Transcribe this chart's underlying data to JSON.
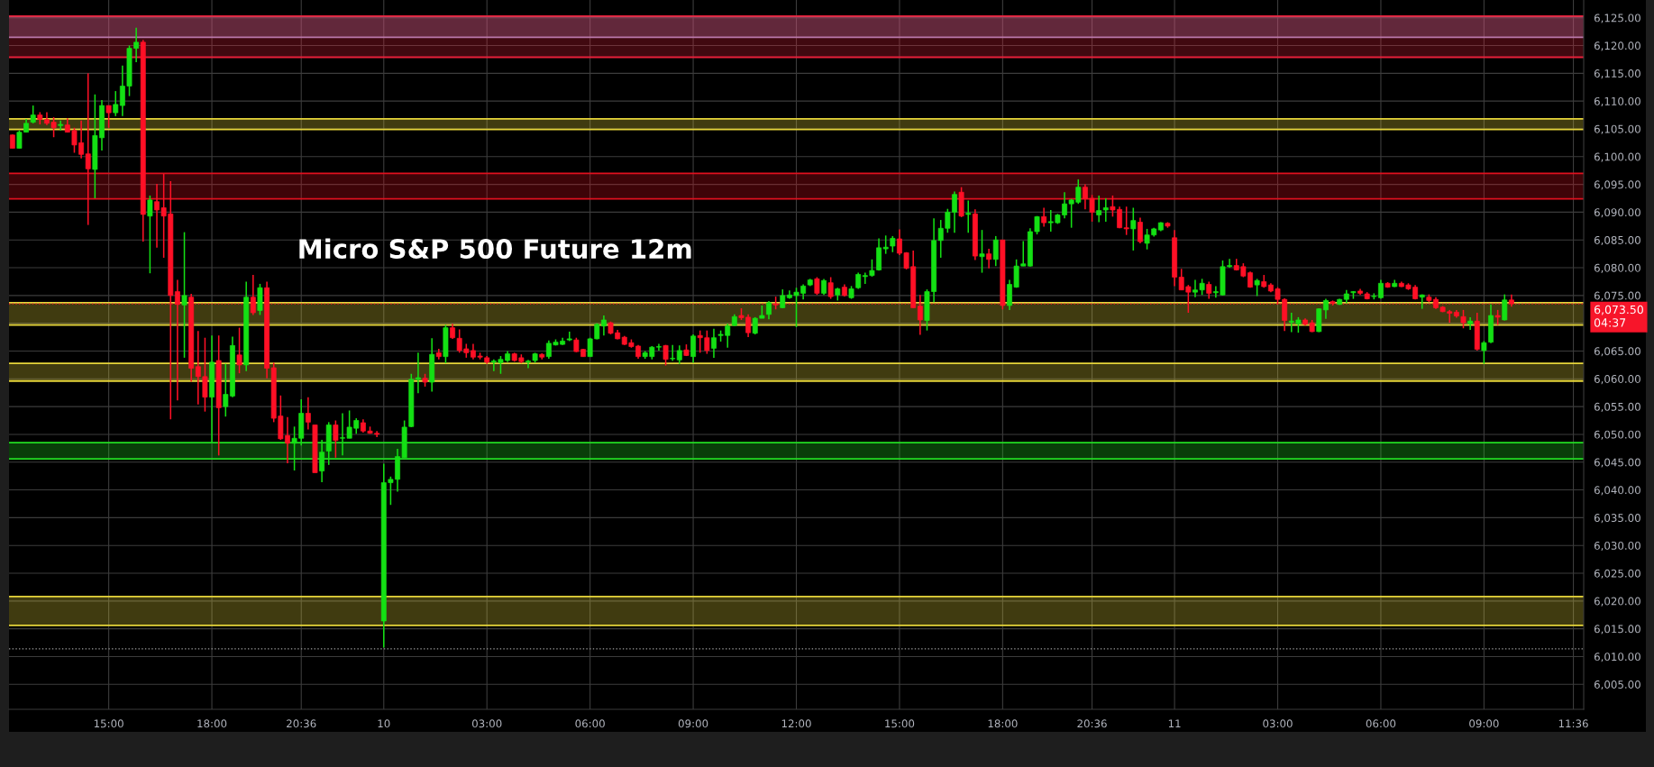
{
  "chart_data": {
    "type": "candlestick",
    "title": "Micro S&P 500 Future 12m",
    "categories": [
      null,
      null,
      null,
      null,
      null,
      null,
      null,
      null,
      null,
      null,
      null,
      null,
      null,
      null,
      "15:00",
      null,
      null,
      null,
      null,
      null,
      null,
      null,
      null,
      null,
      null,
      null,
      null,
      null,
      null,
      "18:00",
      null,
      null,
      null,
      null,
      null,
      null,
      null,
      null,
      null,
      null,
      null,
      null,
      "20:36",
      null,
      null,
      null,
      null,
      null,
      null,
      null,
      null,
      null,
      null,
      null,
      "10",
      null,
      null,
      null,
      null,
      null,
      null,
      null,
      null,
      null,
      null,
      null,
      null,
      null,
      null,
      "03:00",
      null,
      null,
      null,
      null,
      null,
      null,
      null,
      null,
      null,
      null,
      null,
      null,
      null,
      null,
      "06:00",
      null,
      null,
      null,
      null,
      null,
      null,
      null,
      null,
      null,
      null,
      null,
      null,
      null,
      null,
      "09:00",
      null,
      null,
      null,
      null,
      null,
      null,
      null,
      null,
      null,
      null,
      null,
      null,
      null,
      null,
      "12:00",
      null,
      null,
      null,
      null,
      null,
      null,
      null,
      null,
      null,
      null,
      null,
      null,
      null,
      null,
      "15:00",
      null,
      null,
      null,
      null,
      null,
      null,
      null,
      null,
      null,
      null,
      null,
      null,
      null,
      null,
      "18:00",
      null,
      null,
      null,
      null,
      null,
      null,
      null,
      null,
      null,
      null,
      null,
      null,
      "20:36",
      null,
      null,
      null,
      null,
      null,
      null,
      null,
      null,
      null,
      null,
      null,
      "11",
      null,
      null,
      null,
      null,
      null,
      null,
      null,
      null,
      null,
      null,
      null,
      null,
      null,
      null,
      "03:00",
      null,
      null,
      null,
      null,
      null,
      null,
      null,
      null,
      null,
      null,
      null,
      null,
      null,
      null,
      "06:00",
      null,
      null,
      null,
      null,
      null,
      null,
      null,
      null,
      null,
      null,
      null,
      null,
      null,
      null,
      "09:00",
      null,
      null,
      null,
      null,
      null,
      null,
      null,
      null,
      null,
      null,
      null,
      null,
      "11:36",
      null
    ],
    "ohlc": [
      [
        6103.9,
        6104.0,
        6101.5,
        6101.5
      ],
      [
        6101.5,
        6104.7,
        6101.5,
        6104.4
      ],
      [
        6104.4,
        6106.8,
        6104.4,
        6106.0
      ],
      [
        6106.2,
        6109.2,
        6106.0,
        6107.5
      ],
      [
        6107.5,
        6108.0,
        6105.8,
        6106.7
      ],
      [
        6106.7,
        6108.0,
        6105.7,
        6106.0
      ],
      [
        6106.2,
        6107.1,
        6103.5,
        6105.2
      ],
      [
        6105.6,
        6106.5,
        6104.7,
        6105.8
      ],
      [
        6105.7,
        6106.9,
        6104.4,
        6104.4
      ],
      [
        6104.7,
        6105.2,
        6100.7,
        6102.1
      ],
      [
        6102.5,
        6106.5,
        6099.7,
        6100.4
      ],
      [
        6100.5,
        6115.0,
        6087.7,
        6097.8
      ],
      [
        6097.7,
        6111.2,
        6092.5,
        6103.8
      ],
      [
        6103.4,
        6110.2,
        6101.1,
        6109.2
      ],
      [
        6109.2,
        6109.2,
        6105.2,
        6107.9
      ],
      [
        6107.9,
        6111.8,
        6107.3,
        6109.4
      ],
      [
        6109.2,
        6116.4,
        6107.3,
        6112.7
      ],
      [
        6112.7,
        6120.0,
        6110.9,
        6119.5
      ],
      [
        6119.5,
        6123.2,
        6117.0,
        6120.6
      ],
      [
        6120.6,
        6121.0,
        6084.7,
        6089.6
      ],
      [
        6089.3,
        6093.0,
        6079.0,
        6092.2
      ],
      [
        6091.9,
        6095.1,
        6083.6,
        6090.4
      ],
      [
        6090.8,
        6096.9,
        6081.8,
        6089.3
      ],
      [
        6089.7,
        6095.6,
        6052.7,
        6075.0
      ],
      [
        6075.7,
        6077.8,
        6056.1,
        6073.4
      ],
      [
        6073.3,
        6086.4,
        6063.8,
        6075.0
      ],
      [
        6074.7,
        6075.3,
        6059.5,
        6061.9
      ],
      [
        6062.2,
        6068.6,
        6055.4,
        6060.4
      ],
      [
        6060.4,
        6067.4,
        6054.1,
        6056.7
      ],
      [
        6056.7,
        6067.8,
        6048.4,
        6063.0
      ],
      [
        6063.3,
        6067.8,
        6046.2,
        6054.8
      ],
      [
        6055.0,
        6062.7,
        6053.2,
        6057.2
      ],
      [
        6056.9,
        6067.6,
        6056.7,
        6066.0
      ],
      [
        6064.3,
        6069.2,
        6061.0,
        6062.5
      ],
      [
        6062.5,
        6077.5,
        6061.4,
        6074.7
      ],
      [
        6074.7,
        6078.7,
        6071.5,
        6071.9
      ],
      [
        6072.3,
        6077.1,
        6071.5,
        6076.4
      ],
      [
        6076.4,
        6077.5,
        6060.1,
        6061.9
      ],
      [
        6062.0,
        6062.9,
        6052.2,
        6052.9
      ],
      [
        6053.3,
        6057.0,
        6049.0,
        6049.2
      ],
      [
        6049.8,
        6053.1,
        6044.8,
        6048.4
      ],
      [
        6048.4,
        6051.4,
        6043.5,
        6049.3
      ],
      [
        6049.3,
        6056.3,
        6048.0,
        6053.8
      ],
      [
        6053.8,
        6056.7,
        6050.9,
        6052.2
      ],
      [
        6051.7,
        6051.7,
        6043.1,
        6043.1
      ],
      [
        6043.4,
        6049.0,
        6041.4,
        6046.8
      ],
      [
        6047.0,
        6052.2,
        6044.5,
        6051.7
      ],
      [
        6051.7,
        6052.5,
        6045.8,
        6048.9
      ],
      [
        6049.3,
        6053.8,
        6046.2,
        6049.4
      ],
      [
        6049.3,
        6054.3,
        6049.3,
        6051.3
      ],
      [
        6051.1,
        6052.9,
        6050.1,
        6052.5
      ],
      [
        6052.1,
        6052.7,
        6050.3,
        6050.6
      ],
      [
        6050.6,
        6051.4,
        6050.1,
        6050.2
      ],
      [
        6050.2,
        6050.6,
        6049.5,
        6050.0
      ],
      [
        6016.4,
        6044.7,
        6011.6,
        6041.3
      ],
      [
        6041.3,
        6042.4,
        6037.3,
        6041.9
      ],
      [
        6041.9,
        6047.4,
        6039.7,
        6046.0
      ],
      [
        6045.8,
        6052.5,
        6045.8,
        6051.3
      ],
      [
        6051.4,
        6060.9,
        6051.3,
        6059.9
      ],
      [
        6059.9,
        6064.7,
        6057.4,
        6060.2
      ],
      [
        6060.1,
        6060.9,
        6058.6,
        6059.4
      ],
      [
        6059.4,
        6067.3,
        6057.7,
        6064.4
      ],
      [
        6064.7,
        6065.4,
        6063.5,
        6064.0
      ],
      [
        6064.0,
        6069.7,
        6062.8,
        6069.2
      ],
      [
        6069.2,
        6069.9,
        6067.2,
        6067.4
      ],
      [
        6067.3,
        6068.9,
        6064.7,
        6065.1
      ],
      [
        6065.4,
        6066.3,
        6063.8,
        6064.7
      ],
      [
        6065.1,
        6066.3,
        6063.5,
        6063.9
      ],
      [
        6064.1,
        6064.7,
        6063.5,
        6063.9
      ],
      [
        6063.8,
        6064.1,
        6062.7,
        6063.0
      ],
      [
        6063.0,
        6063.5,
        6061.4,
        6063.2
      ],
      [
        6062.9,
        6064.1,
        6060.9,
        6063.5
      ],
      [
        6063.3,
        6065.0,
        6063.0,
        6064.5
      ],
      [
        6064.5,
        6064.7,
        6063.1,
        6063.3
      ],
      [
        6063.8,
        6064.4,
        6062.8,
        6063.1
      ],
      [
        6063.0,
        6063.4,
        6061.9,
        6063.2
      ],
      [
        6063.3,
        6064.7,
        6062.9,
        6064.5
      ],
      [
        6064.4,
        6064.6,
        6063.5,
        6063.9
      ],
      [
        6064.0,
        6066.9,
        6063.6,
        6066.4
      ],
      [
        6066.1,
        6067.1,
        6066.0,
        6066.6
      ],
      [
        6066.2,
        6067.4,
        6066.1,
        6066.8
      ],
      [
        6067.0,
        6068.5,
        6066.8,
        6067.2
      ],
      [
        6067.0,
        6067.4,
        6064.8,
        6064.9
      ],
      [
        6065.3,
        6065.4,
        6064.0,
        6064.0
      ],
      [
        6064.0,
        6067.4,
        6064.0,
        6067.2
      ],
      [
        6067.2,
        6070.0,
        6067.1,
        6069.8
      ],
      [
        6069.5,
        6071.4,
        6067.8,
        6070.6
      ],
      [
        6070.1,
        6070.3,
        6068.0,
        6068.2
      ],
      [
        6068.3,
        6068.8,
        6067.1,
        6067.2
      ],
      [
        6067.5,
        6067.7,
        6066.1,
        6066.2
      ],
      [
        6066.5,
        6067.1,
        6065.6,
        6065.8
      ],
      [
        6065.9,
        6066.1,
        6063.6,
        6064.0
      ],
      [
        6064.0,
        6065.0,
        6063.6,
        6064.7
      ],
      [
        6064.0,
        6065.9,
        6063.5,
        6065.7
      ],
      [
        6065.7,
        6066.3,
        6065.1,
        6065.8
      ],
      [
        6066.0,
        6066.1,
        6062.4,
        6063.5
      ],
      [
        6063.6,
        6066.1,
        6063.2,
        6063.7
      ],
      [
        6063.4,
        6066.0,
        6062.7,
        6065.1
      ],
      [
        6065.2,
        6066.2,
        6064.1,
        6064.2
      ],
      [
        6064.0,
        6068.0,
        6062.9,
        6067.7
      ],
      [
        6067.8,
        6068.7,
        6064.7,
        6067.4
      ],
      [
        6067.4,
        6068.7,
        6064.5,
        6065.1
      ],
      [
        6065.5,
        6069.0,
        6063.8,
        6067.4
      ],
      [
        6067.8,
        6068.7,
        6066.7,
        6068.0
      ],
      [
        6067.8,
        6069.9,
        6065.6,
        6069.5
      ],
      [
        6069.6,
        6071.6,
        6069.5,
        6071.2
      ],
      [
        6071.4,
        6072.7,
        6070.6,
        6071.0
      ],
      [
        6071.1,
        6071.6,
        6067.5,
        6068.3
      ],
      [
        6068.2,
        6071.1,
        6068.0,
        6070.9
      ],
      [
        6070.9,
        6073.2,
        6070.9,
        6071.4
      ],
      [
        6071.6,
        6074.0,
        6070.7,
        6073.7
      ],
      [
        6073.5,
        6074.8,
        6072.5,
        6073.3
      ],
      [
        6072.8,
        6076.1,
        6072.7,
        6075.0
      ],
      [
        6074.6,
        6075.9,
        6074.4,
        6075.1
      ],
      [
        6075.0,
        6076.4,
        6069.3,
        6075.6
      ],
      [
        6075.4,
        6077.0,
        6074.3,
        6076.7
      ],
      [
        6076.9,
        6078.0,
        6076.7,
        6077.8
      ],
      [
        6078.0,
        6078.3,
        6075.1,
        6075.4
      ],
      [
        6075.4,
        6078.0,
        6075.1,
        6077.7
      ],
      [
        6077.3,
        6078.3,
        6074.4,
        6074.8
      ],
      [
        6075.1,
        6076.4,
        6074.1,
        6076.2
      ],
      [
        6076.5,
        6077.0,
        6074.8,
        6075.0
      ],
      [
        6074.6,
        6076.7,
        6074.4,
        6076.2
      ],
      [
        6076.4,
        6079.1,
        6076.2,
        6078.8
      ],
      [
        6078.4,
        6079.1,
        6077.1,
        6078.6
      ],
      [
        6078.6,
        6081.5,
        6078.4,
        6079.5
      ],
      [
        6079.6,
        6085.3,
        6079.5,
        6083.6
      ],
      [
        6083.4,
        6085.8,
        6082.5,
        6083.7
      ],
      [
        6083.9,
        6085.7,
        6082.8,
        6085.3
      ],
      [
        6085.2,
        6086.9,
        6082.3,
        6082.6
      ],
      [
        6082.7,
        6082.8,
        6079.7,
        6079.9
      ],
      [
        6080.2,
        6083.1,
        6072.8,
        6072.8
      ],
      [
        6073.1,
        6075.1,
        6067.9,
        6070.6
      ],
      [
        6070.5,
        6076.1,
        6068.7,
        6075.7
      ],
      [
        6075.7,
        6088.9,
        6073.8,
        6084.9
      ],
      [
        6084.9,
        6088.6,
        6081.8,
        6087.1
      ],
      [
        6087.1,
        6090.6,
        6086.3,
        6090.0
      ],
      [
        6090.0,
        6093.7,
        6086.3,
        6093.2
      ],
      [
        6093.6,
        6094.5,
        6089.1,
        6089.3
      ],
      [
        6089.6,
        6092.1,
        6086.3,
        6089.8
      ],
      [
        6089.7,
        6090.5,
        6081.4,
        6082.1
      ],
      [
        6082.0,
        6086.8,
        6079.1,
        6082.5
      ],
      [
        6082.5,
        6083.4,
        6079.9,
        6081.5
      ],
      [
        6081.5,
        6085.7,
        6080.3,
        6085.0
      ],
      [
        6085.0,
        6085.0,
        6072.5,
        6073.2
      ],
      [
        6073.2,
        6077.8,
        6072.4,
        6077.0
      ],
      [
        6076.5,
        6081.5,
        6076.4,
        6080.3
      ],
      [
        6080.3,
        6084.8,
        6080.3,
        6080.7
      ],
      [
        6080.3,
        6087.1,
        6080.2,
        6086.5
      ],
      [
        6086.5,
        6089.3,
        6086.0,
        6089.2
      ],
      [
        6089.2,
        6090.8,
        6087.4,
        6088.1
      ],
      [
        6088.1,
        6090.4,
        6086.5,
        6088.3
      ],
      [
        6088.1,
        6089.7,
        6087.9,
        6089.5
      ],
      [
        6089.5,
        6093.6,
        6088.9,
        6091.5
      ],
      [
        6091.5,
        6092.4,
        6087.2,
        6092.2
      ],
      [
        6091.8,
        6095.9,
        6091.5,
        6094.5
      ],
      [
        6094.5,
        6095.0,
        6090.5,
        6092.4
      ],
      [
        6092.5,
        6093.1,
        6088.3,
        6090.0
      ],
      [
        6089.5,
        6093.0,
        6088.2,
        6090.3
      ],
      [
        6090.4,
        6092.5,
        6088.3,
        6090.8
      ],
      [
        6091.0,
        6093.0,
        6089.2,
        6090.4
      ],
      [
        6090.5,
        6091.0,
        6087.1,
        6087.2
      ],
      [
        6087.2,
        6091.0,
        6085.9,
        6087.0
      ],
      [
        6087.0,
        6090.8,
        6083.1,
        6088.5
      ],
      [
        6088.2,
        6089.0,
        6084.4,
        6084.7
      ],
      [
        6084.4,
        6087.0,
        6083.3,
        6085.9
      ],
      [
        6085.9,
        6087.2,
        6085.6,
        6087.0
      ],
      [
        6086.8,
        6088.2,
        6086.6,
        6088.1
      ],
      [
        6088.0,
        6088.2,
        6087.2,
        6087.5
      ],
      [
        6085.4,
        6086.8,
        6076.7,
        6078.3
      ],
      [
        6078.3,
        6079.8,
        6076.0,
        6076.0
      ],
      [
        6076.6,
        6076.9,
        6071.9,
        6075.6
      ],
      [
        6075.6,
        6077.8,
        6074.7,
        6076.0
      ],
      [
        6076.0,
        6078.0,
        6075.1,
        6077.2
      ],
      [
        6077.0,
        6077.5,
        6074.4,
        6075.4
      ],
      [
        6075.5,
        6076.7,
        6074.6,
        6075.7
      ],
      [
        6075.1,
        6081.3,
        6075.0,
        6080.2
      ],
      [
        6080.2,
        6081.6,
        6080.0,
        6080.4
      ],
      [
        6080.4,
        6081.6,
        6079.5,
        6079.6
      ],
      [
        6080.2,
        6080.8,
        6078.3,
        6078.5
      ],
      [
        6079.1,
        6079.3,
        6076.4,
        6076.5
      ],
      [
        6076.9,
        6078.0,
        6074.9,
        6077.7
      ],
      [
        6077.5,
        6078.7,
        6076.4,
        6076.6
      ],
      [
        6076.9,
        6077.2,
        6075.6,
        6075.8
      ],
      [
        6076.2,
        6076.5,
        6073.4,
        6074.3
      ],
      [
        6074.3,
        6074.5,
        6068.6,
        6070.5
      ],
      [
        6070.2,
        6071.9,
        6068.4,
        6070.4
      ],
      [
        6069.9,
        6071.1,
        6068.3,
        6070.6
      ],
      [
        6070.6,
        6070.9,
        6069.6,
        6069.8
      ],
      [
        6070.1,
        6070.6,
        6068.4,
        6068.5
      ],
      [
        6068.5,
        6072.7,
        6068.4,
        6072.6
      ],
      [
        6072.4,
        6074.4,
        6070.8,
        6074.1
      ],
      [
        6073.9,
        6074.1,
        6073.2,
        6073.6
      ],
      [
        6073.4,
        6074.4,
        6073.3,
        6074.3
      ],
      [
        6074.3,
        6076.0,
        6073.6,
        6075.3
      ],
      [
        6075.5,
        6075.8,
        6074.4,
        6075.7
      ],
      [
        6075.8,
        6076.2,
        6075.1,
        6075.4
      ],
      [
        6075.3,
        6075.6,
        6074.3,
        6074.4
      ],
      [
        6074.8,
        6075.4,
        6074.3,
        6074.9
      ],
      [
        6074.6,
        6077.8,
        6074.4,
        6077.2
      ],
      [
        6077.2,
        6077.4,
        6076.4,
        6076.5
      ],
      [
        6076.6,
        6077.8,
        6076.5,
        6077.2
      ],
      [
        6077.2,
        6077.5,
        6076.5,
        6076.6
      ],
      [
        6076.9,
        6077.2,
        6076.0,
        6076.2
      ],
      [
        6076.5,
        6076.9,
        6074.3,
        6074.4
      ],
      [
        6074.7,
        6075.2,
        6072.6,
        6075.1
      ],
      [
        6074.7,
        6075.2,
        6073.8,
        6074.1
      ],
      [
        6074.3,
        6074.7,
        6072.6,
        6072.8
      ],
      [
        6072.9,
        6073.1,
        6072.0,
        6072.1
      ],
      [
        6072.1,
        6072.4,
        6070.1,
        6071.8
      ],
      [
        6072.0,
        6072.4,
        6071.0,
        6071.3
      ],
      [
        6071.2,
        6072.4,
        6069.1,
        6070.1
      ],
      [
        6069.9,
        6071.1,
        6068.8,
        6070.4
      ],
      [
        6070.4,
        6071.9,
        6065.1,
        6065.3
      ],
      [
        6065.1,
        6066.8,
        6062.7,
        6066.5
      ],
      [
        6066.6,
        6073.4,
        6066.4,
        6071.4
      ],
      [
        6071.4,
        6072.4,
        6069.7,
        6071.1
      ],
      [
        6070.6,
        6075.2,
        6070.5,
        6074.2
      ],
      [
        6074.2,
        6075.2,
        6073.0,
        6073.5
      ],
      null,
      null,
      null,
      null,
      null,
      null,
      null,
      null,
      null,
      null
    ],
    "colors": [
      "#ff1026",
      "#14e014",
      "#14e014",
      "#14e014",
      "#ff1026",
      "#ff1026",
      "#ff1026",
      "#14e014",
      "#ff1026",
      "#ff1026",
      "#ff1026",
      "#ff1026",
      "#14e014",
      "#14e014",
      "#ff1026",
      "#14e014",
      "#14e014",
      "#14e014",
      "#14e014",
      "#ff1026",
      "#14e014",
      "#ff1026",
      "#ff1026",
      "#ff1026",
      "#ff1026",
      "#14e014",
      "#ff1026",
      "#ff1026",
      "#ff1026",
      "#14e014",
      "#ff1026",
      "#14e014",
      "#14e014",
      "#ff1026",
      "#14e014",
      "#ff1026",
      "#14e014",
      "#ff1026",
      "#ff1026",
      "#ff1026",
      "#ff1026",
      "#14e014",
      "#14e014",
      "#ff1026",
      "#ff1026",
      "#14e014",
      "#14e014",
      "#ff1026",
      "#14e014",
      "#14e014",
      "#14e014",
      "#ff1026",
      "#ff1026",
      "#ff1026",
      "#14e014",
      "#14e014",
      "#14e014",
      "#14e014",
      "#14e014",
      "#14e014",
      "#ff1026",
      "#14e014",
      "#ff1026",
      "#14e014",
      "#ff1026",
      "#ff1026",
      "#ff1026",
      "#ff1026",
      "#ff1026",
      "#ff1026",
      "#14e014",
      "#14e014",
      "#14e014",
      "#ff1026",
      "#ff1026",
      "#14e014",
      "#14e014",
      "#ff1026",
      "#14e014",
      "#14e014",
      "#14e014",
      "#14e014",
      "#ff1026",
      "#ff1026",
      "#14e014",
      "#14e014",
      "#14e014",
      "#ff1026",
      "#ff1026",
      "#ff1026",
      "#ff1026",
      "#ff1026",
      "#14e014",
      "#14e014",
      "#14e014",
      "#ff1026",
      "#14e014",
      "#14e014",
      "#ff1026",
      "#14e014",
      "#ff1026",
      "#ff1026",
      "#14e014",
      "#14e014",
      "#14e014",
      "#14e014",
      "#ff1026",
      "#ff1026",
      "#14e014",
      "#14e014",
      "#14e014",
      "#ff1026",
      "#14e014",
      "#14e014",
      "#14e014",
      "#14e014",
      "#14e014",
      "#ff1026",
      "#14e014",
      "#ff1026",
      "#14e014",
      "#ff1026",
      "#14e014",
      "#14e014",
      "#14e014",
      "#14e014",
      "#14e014",
      "#14e014",
      "#14e014",
      "#ff1026",
      "#ff1026",
      "#ff1026",
      "#ff1026",
      "#14e014",
      "#14e014",
      "#14e014",
      "#14e014",
      "#14e014",
      "#ff1026",
      "#14e014",
      "#ff1026",
      "#14e014",
      "#ff1026",
      "#14e014",
      "#ff1026",
      "#14e014",
      "#14e014",
      "#14e014",
      "#14e014",
      "#14e014",
      "#ff1026",
      "#14e014",
      "#14e014",
      "#14e014",
      "#14e014",
      "#14e014",
      "#ff1026",
      "#ff1026",
      "#14e014",
      "#14e014",
      "#ff1026",
      "#ff1026",
      "#ff1026",
      "#14e014",
      "#ff1026",
      "#14e014",
      "#14e014",
      "#14e014",
      "#ff1026",
      "#ff1026",
      "#ff1026",
      "#ff1026",
      "#14e014",
      "#14e014",
      "#ff1026",
      "#14e014",
      "#14e014",
      "#14e014",
      "#ff1026",
      "#ff1026",
      "#ff1026",
      "#14e014",
      "#ff1026",
      "#ff1026",
      "#ff1026",
      "#ff1026",
      "#14e014",
      "#14e014",
      "#ff1026",
      "#ff1026",
      "#14e014",
      "#14e014",
      "#ff1026",
      "#14e014",
      "#14e014",
      "#14e014",
      "#ff1026",
      "#ff1026",
      "#14e014",
      "#14e014",
      "#ff1026",
      "#14e014",
      "#ff1026",
      "#ff1026",
      "#ff1026",
      "#14e014",
      "#ff1026",
      "#ff1026",
      "#ff1026",
      "#ff1026",
      "#ff1026",
      "#ff1026",
      "#14e014",
      "#ff1026",
      "#14e014",
      "#14e014",
      "#ff1026",
      "#14e014",
      "#ff1026",
      null,
      null,
      null,
      null,
      null,
      null,
      null,
      null,
      null,
      null
    ],
    "ylim": [
      6000.5,
      6128.2
    ],
    "yticks": [
      {
        "value": 6005,
        "label": "6,005.00"
      },
      {
        "value": 6010,
        "label": "6,010.00"
      },
      {
        "value": 6015,
        "label": "6,015.00"
      },
      {
        "value": 6020,
        "label": "6,020.00"
      },
      {
        "value": 6025,
        "label": "6,025.00"
      },
      {
        "value": 6030,
        "label": "6,030.00"
      },
      {
        "value": 6035,
        "label": "6,035.00"
      },
      {
        "value": 6040,
        "label": "6,040.00"
      },
      {
        "value": 6045,
        "label": "6,045.00"
      },
      {
        "value": 6050,
        "label": "6,050.00"
      },
      {
        "value": 6055,
        "label": "6,055.00"
      },
      {
        "value": 6060,
        "label": "6,060.00"
      },
      {
        "value": 6065,
        "label": "6,065.00"
      },
      {
        "value": 6070,
        "label": null
      },
      {
        "value": 6075,
        "label": "6,075.00"
      },
      {
        "value": 6080,
        "label": "6,080.00"
      },
      {
        "value": 6085,
        "label": "6,085.00"
      },
      {
        "value": 6090,
        "label": "6,090.00"
      },
      {
        "value": 6095,
        "label": "6,095.00"
      },
      {
        "value": 6100,
        "label": "6,100.00"
      },
      {
        "value": 6105,
        "label": "6,105.00"
      },
      {
        "value": 6110,
        "label": "6,110.00"
      },
      {
        "value": 6115,
        "label": "6,115.00"
      },
      {
        "value": 6120,
        "label": "6,120.00"
      },
      {
        "value": 6125,
        "label": "6,125.00"
      }
    ],
    "grid": true,
    "bands": [
      {
        "axis": "y",
        "from": 6121.5,
        "to": 6125.3,
        "color": "#a89ad6"
      },
      {
        "axis": "y",
        "from": 6117.9,
        "to": 6125.3,
        "color": "#e8203a"
      },
      {
        "axis": "y",
        "from": 6104.9,
        "to": 6106.8,
        "color": "#e6d53a"
      },
      {
        "axis": "y",
        "from": 6092.4,
        "to": 6097.0,
        "color": "#e0101e"
      },
      {
        "axis": "y",
        "from": 6069.7,
        "to": 6073.7,
        "color": "#e6d53a"
      },
      {
        "axis": "y",
        "from": 6059.6,
        "to": 6062.8,
        "color": "#e6d53a"
      },
      {
        "axis": "y",
        "from": 6045.6,
        "to": 6048.5,
        "color": "#22dd22"
      },
      {
        "axis": "y",
        "from": 6015.6,
        "to": 6020.8,
        "color": "#e6d53a"
      }
    ],
    "ref_lines": [
      {
        "axis": "y",
        "value": 6073.5,
        "label": "6,073.50\n04:37",
        "color": "#f7152a",
        "line_style": "dotted"
      },
      {
        "axis": "y",
        "value": 6011.4,
        "color": "#9a9a9a",
        "line_style": "dotted"
      }
    ]
  }
}
